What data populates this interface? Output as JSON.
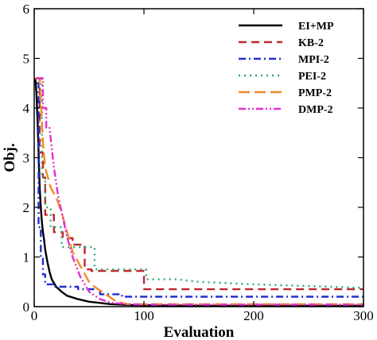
{
  "chart_data": {
    "type": "line",
    "title": "",
    "xlabel": "Evaluation",
    "ylabel": "Obj.",
    "xlim": [
      0,
      300
    ],
    "ylim": [
      0,
      6
    ],
    "xticks": [
      0,
      100,
      200,
      300
    ],
    "yticks": [
      0,
      1,
      2,
      3,
      4,
      5,
      6
    ],
    "grid": false,
    "legend_position": "top-right",
    "series": [
      {
        "name": "EI+MP",
        "color": "#000000",
        "dash": "solid",
        "points": [
          [
            1,
            4.6
          ],
          [
            2,
            4.3
          ],
          [
            3,
            3.8
          ],
          [
            4,
            3.1
          ],
          [
            5,
            2.4
          ],
          [
            6,
            2.0
          ],
          [
            7,
            1.7
          ],
          [
            8,
            1.5
          ],
          [
            9,
            1.35
          ],
          [
            10,
            1.15
          ],
          [
            12,
            0.9
          ],
          [
            14,
            0.7
          ],
          [
            16,
            0.55
          ],
          [
            20,
            0.4
          ],
          [
            25,
            0.3
          ],
          [
            30,
            0.22
          ],
          [
            40,
            0.15
          ],
          [
            50,
            0.1
          ],
          [
            70,
            0.05
          ],
          [
            90,
            0.03
          ],
          [
            150,
            0.02
          ],
          [
            300,
            0.02
          ]
        ]
      },
      {
        "name": "KB-2",
        "color": "#c0272d",
        "dash": "10,6",
        "points": [
          [
            2,
            4.6
          ],
          [
            5,
            4.6
          ],
          [
            5,
            3.1
          ],
          [
            8,
            3.1
          ],
          [
            8,
            2.6
          ],
          [
            10,
            2.6
          ],
          [
            10,
            1.85
          ],
          [
            18,
            1.85
          ],
          [
            18,
            1.5
          ],
          [
            26,
            1.5
          ],
          [
            26,
            1.38
          ],
          [
            35,
            1.38
          ],
          [
            35,
            1.25
          ],
          [
            46,
            1.25
          ],
          [
            46,
            0.75
          ],
          [
            52,
            0.75
          ],
          [
            52,
            0.72
          ],
          [
            100,
            0.72
          ],
          [
            100,
            0.35
          ],
          [
            300,
            0.35
          ]
        ]
      },
      {
        "name": "MPI-2",
        "color": "#1f2fd0",
        "dash": "9,4,2,4",
        "points": [
          [
            2,
            4.5
          ],
          [
            4,
            4.5
          ],
          [
            4,
            1.6
          ],
          [
            6,
            1.6
          ],
          [
            6,
            1.0
          ],
          [
            8,
            1.0
          ],
          [
            8,
            0.65
          ],
          [
            10,
            0.65
          ],
          [
            10,
            0.45
          ],
          [
            18,
            0.45
          ],
          [
            18,
            0.4
          ],
          [
            40,
            0.4
          ],
          [
            40,
            0.35
          ],
          [
            60,
            0.35
          ],
          [
            60,
            0.25
          ],
          [
            80,
            0.25
          ],
          [
            80,
            0.2
          ],
          [
            300,
            0.2
          ]
        ]
      },
      {
        "name": "PEI-2",
        "color": "#2aa870",
        "dash": "2,5",
        "points": [
          [
            2,
            4.6
          ],
          [
            7,
            4.6
          ],
          [
            7,
            2.6
          ],
          [
            10,
            2.6
          ],
          [
            10,
            2.0
          ],
          [
            15,
            2.0
          ],
          [
            15,
            1.6
          ],
          [
            25,
            1.6
          ],
          [
            25,
            1.2
          ],
          [
            55,
            1.2
          ],
          [
            55,
            0.75
          ],
          [
            102,
            0.75
          ],
          [
            102,
            0.55
          ],
          [
            130,
            0.55
          ],
          [
            150,
            0.5
          ],
          [
            200,
            0.45
          ],
          [
            300,
            0.38
          ]
        ]
      },
      {
        "name": "PMP-2",
        "color": "#f28c28",
        "dash": "14,6",
        "points": [
          [
            1,
            4.6
          ],
          [
            5,
            4.6
          ],
          [
            8,
            3.3
          ],
          [
            10,
            2.8
          ],
          [
            15,
            2.4
          ],
          [
            20,
            2.2
          ],
          [
            25,
            1.9
          ],
          [
            30,
            1.5
          ],
          [
            35,
            1.1
          ],
          [
            40,
            0.9
          ],
          [
            45,
            0.7
          ],
          [
            50,
            0.5
          ],
          [
            55,
            0.4
          ],
          [
            65,
            0.25
          ],
          [
            75,
            0.1
          ],
          [
            85,
            0.05
          ],
          [
            100,
            0.05
          ],
          [
            150,
            0.05
          ],
          [
            300,
            0.05
          ]
        ]
      },
      {
        "name": "DMP-2",
        "color": "#e030d0",
        "dash": "9,3,2,3,2,3",
        "points": [
          [
            2,
            4.6
          ],
          [
            8,
            4.6
          ],
          [
            8,
            4.0
          ],
          [
            11,
            4.0
          ],
          [
            11,
            3.6
          ],
          [
            14,
            3.6
          ],
          [
            18,
            2.8
          ],
          [
            22,
            2.2
          ],
          [
            26,
            1.8
          ],
          [
            30,
            1.4
          ],
          [
            35,
            1.0
          ],
          [
            42,
            0.6
          ],
          [
            50,
            0.3
          ],
          [
            60,
            0.15
          ],
          [
            70,
            0.08
          ],
          [
            85,
            0.05
          ],
          [
            100,
            0.04
          ],
          [
            300,
            0.04
          ]
        ]
      }
    ]
  }
}
